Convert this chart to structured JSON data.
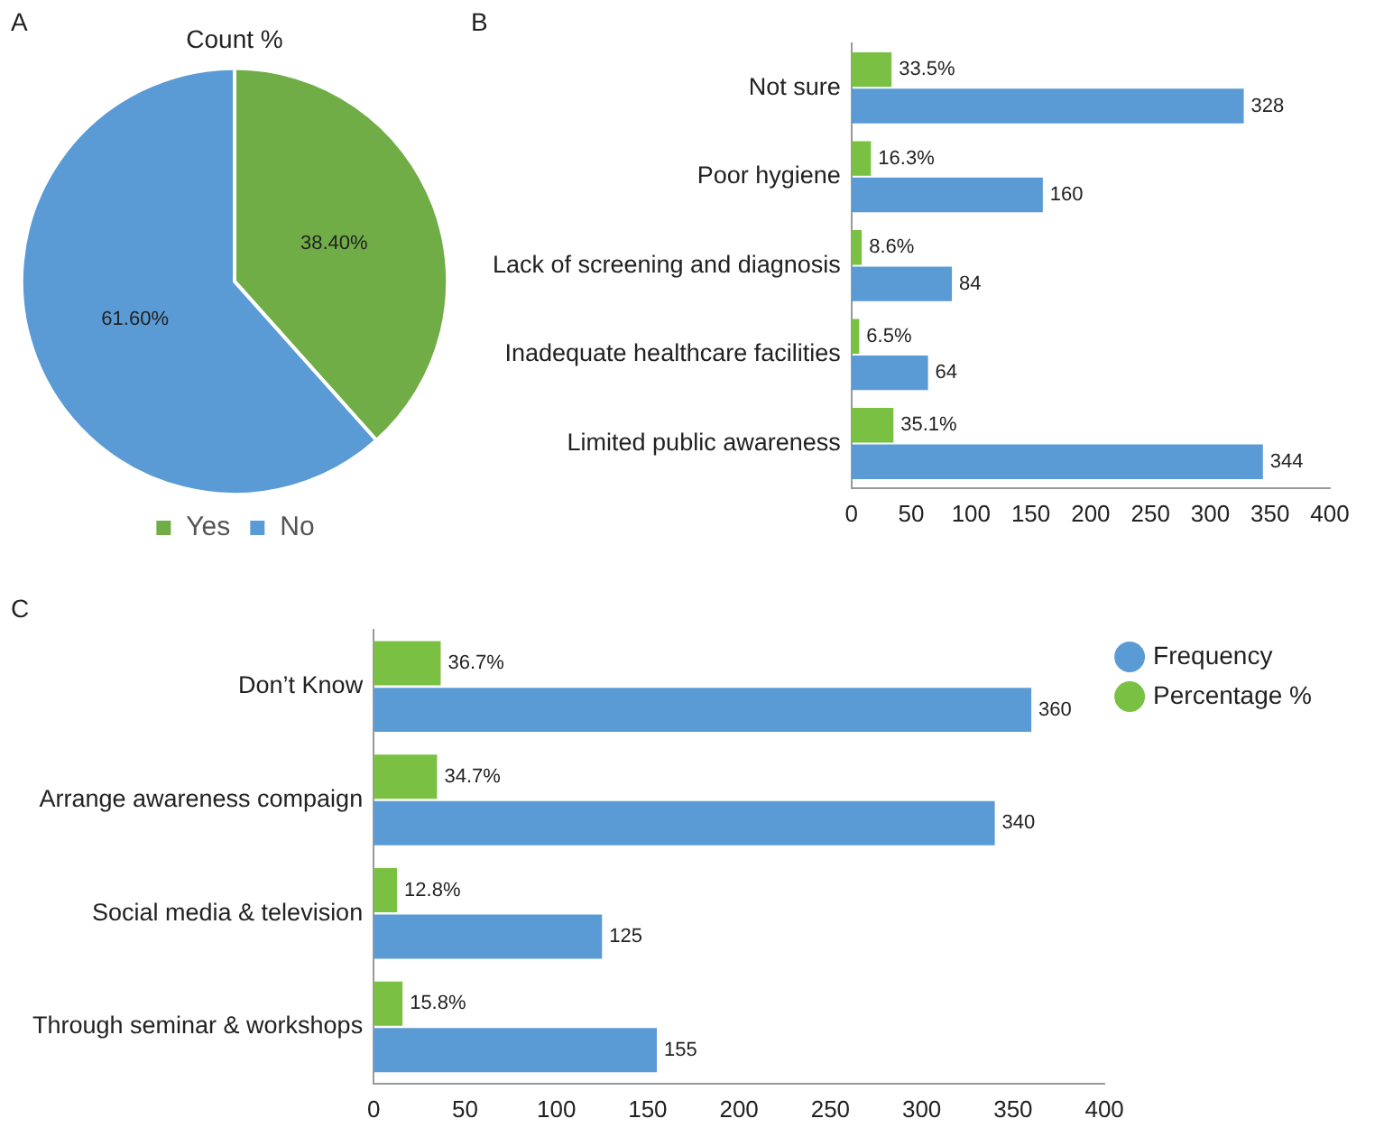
{
  "chart_data": [
    {
      "type": "pie",
      "title": "Count %",
      "annotations": [
        "A"
      ],
      "categories": [
        "Yes",
        "No"
      ],
      "values": [
        38.4,
        61.6
      ],
      "colors": [
        "#70ad47",
        "#5b9bd5"
      ],
      "value_labels": [
        "38.40%",
        "61.60%"
      ],
      "legend": "bottom"
    },
    {
      "type": "bar",
      "orientation": "horizontal",
      "annotations": [
        "B"
      ],
      "categories": [
        "Not sure",
        "Poor hygiene",
        "Lack of screening and diagnosis",
        "Inadequate healthcare facilities",
        "Limited public awareness"
      ],
      "xlim": [
        0,
        400
      ],
      "xticks": [
        0,
        50,
        100,
        150,
        200,
        250,
        300,
        350,
        400
      ],
      "grid": false,
      "legend": false,
      "series": [
        {
          "color": "#7ac143",
          "values": [
            33.5,
            16.3,
            8.6,
            6.5,
            35.1
          ],
          "value_labels": [
            "33.5%",
            "16.3%",
            "8.6%",
            "6.5%",
            "35.1%"
          ]
        },
        {
          "color": "#5b9bd5",
          "values": [
            328,
            160,
            84,
            64,
            344
          ],
          "value_labels": [
            "328",
            "160",
            "84",
            "64",
            "344"
          ]
        }
      ]
    },
    {
      "type": "bar",
      "orientation": "horizontal",
      "annotations": [
        "C"
      ],
      "categories": [
        "Don’t Know",
        "Arrange awareness compaign",
        "Social media & television",
        "Through seminar & workshops"
      ],
      "xlim": [
        0,
        400
      ],
      "xticks": [
        0,
        50,
        100,
        150,
        200,
        250,
        300,
        350,
        400
      ],
      "grid": false,
      "legend": "top right",
      "series": [
        {
          "name": "Percentage %",
          "color": "#7ac143",
          "values": [
            36.7,
            34.7,
            12.8,
            15.8
          ],
          "value_labels": [
            "36.7%",
            "34.7%",
            "12.8%",
            "15.8%"
          ]
        },
        {
          "name": "Frequency",
          "color": "#5b9bd5",
          "values": [
            360,
            340,
            125,
            155
          ],
          "value_labels": [
            "360",
            "340",
            "125",
            "155"
          ]
        }
      ]
    }
  ]
}
